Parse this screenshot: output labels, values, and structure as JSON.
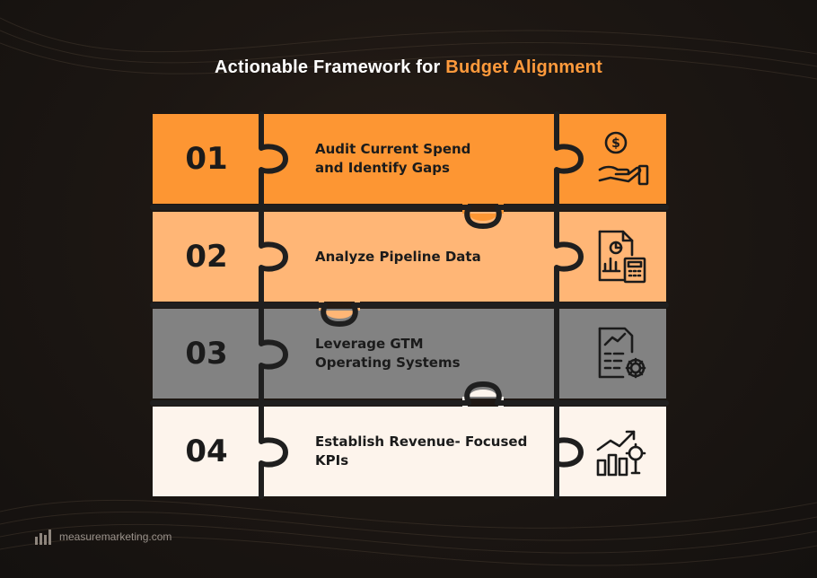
{
  "title": {
    "prefix": "Actionable Framework for ",
    "highlight": "Budget Alignment"
  },
  "steps": [
    {
      "number": "01",
      "line1": "Audit Current Spend",
      "line2": "and Identify Gaps",
      "icon": "money-hand-icon",
      "color": "#fd9633"
    },
    {
      "number": "02",
      "line1": "Analyze Pipeline Data",
      "line2": "",
      "icon": "report-calculator-icon",
      "color": "#ffb676"
    },
    {
      "number": "03",
      "line1": "Leverage GTM",
      "line2": "Operating Systems",
      "icon": "document-gear-icon",
      "color": "#828282"
    },
    {
      "number": "04",
      "line1": "Establish Revenue- Focused",
      "line2": "KPIs",
      "icon": "growth-chart-icon",
      "color": "#fdf4ec"
    }
  ],
  "footer": {
    "site": "measuremarketing.com",
    "logo_icon": "measure-marketing-logo-icon"
  },
  "colors": {
    "accent": "#ff9a3c",
    "seam": "#1f1f1f",
    "background": "#1b1613"
  }
}
